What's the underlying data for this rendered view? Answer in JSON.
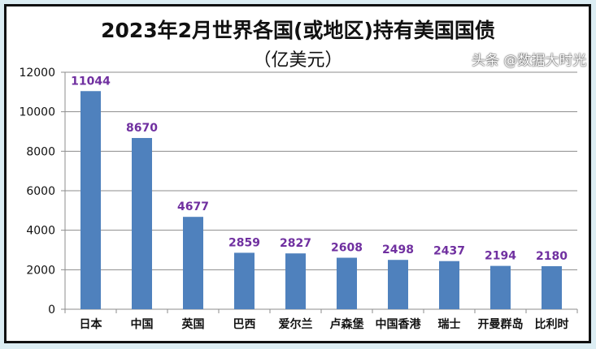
{
  "chart_data": {
    "type": "bar",
    "title": "2023年2月世界各国(或地区)持有美国国债",
    "subtitle": "（亿美元）",
    "categories": [
      "日本",
      "中国",
      "英国",
      "巴西",
      "爱尔兰",
      "卢森堡",
      "中国香港",
      "瑞士",
      "开曼群岛",
      "比利时"
    ],
    "values": [
      11044,
      8670,
      4677,
      2859,
      2827,
      2608,
      2498,
      2437,
      2194,
      2180
    ],
    "ylim": [
      0,
      12000
    ],
    "yticks": [
      0,
      2000,
      4000,
      6000,
      8000,
      10000,
      12000
    ],
    "grid": true,
    "bar_color": "#4f81bd",
    "label_color": "#7030a0"
  },
  "watermark": "头条 @数据大时光"
}
